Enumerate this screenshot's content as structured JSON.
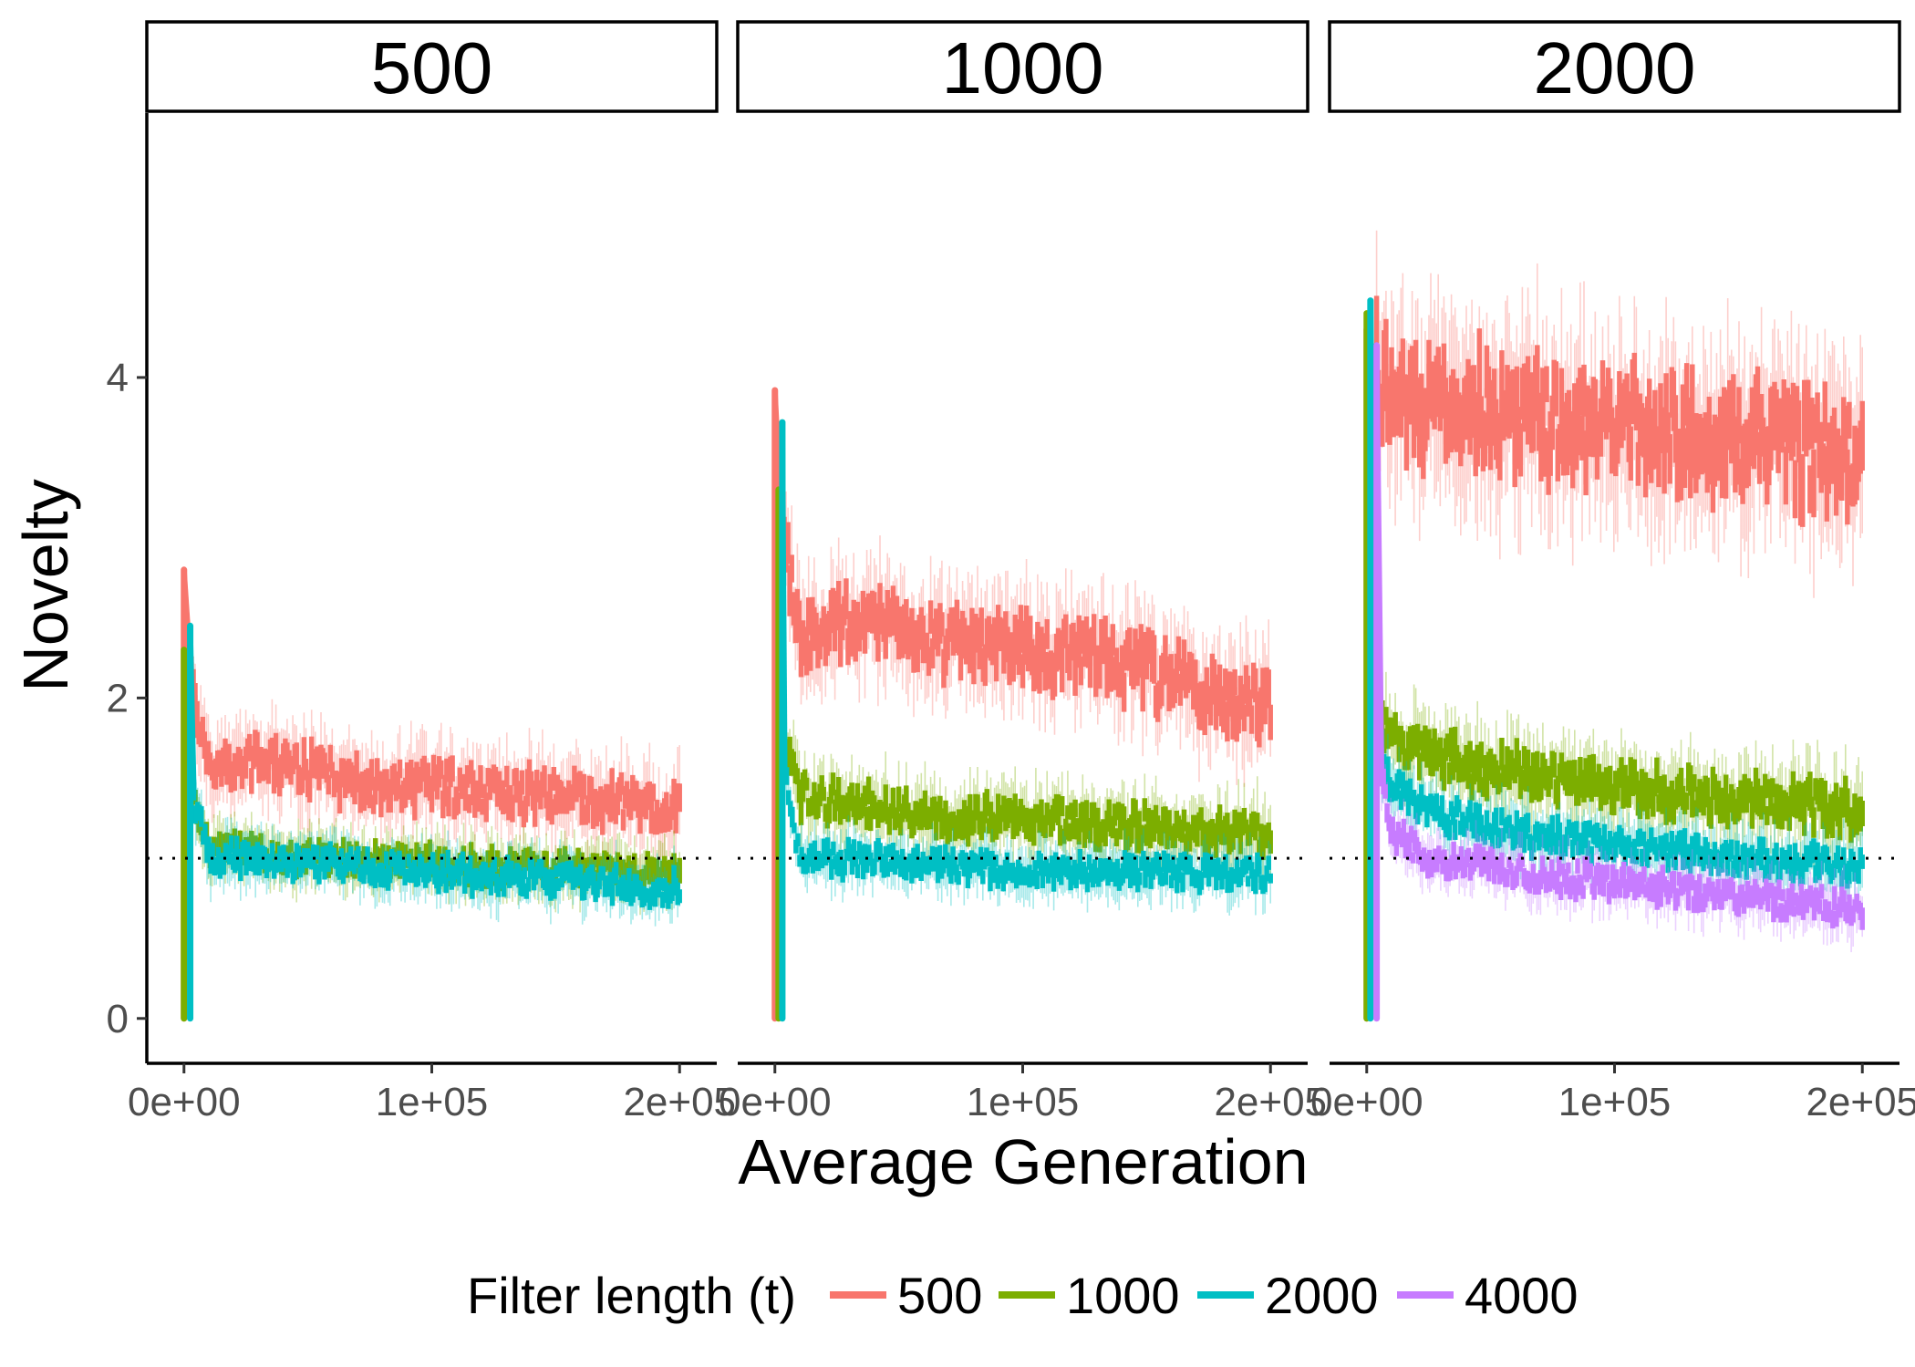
{
  "chart_data": {
    "type": "line",
    "facets": [
      "500",
      "1000",
      "2000"
    ],
    "xlabel": "Average Generation",
    "ylabel": "Novelty",
    "xlim": [
      -15000,
      215000
    ],
    "ylim": [
      -0.28,
      5.65
    ],
    "x_ticks": [
      0,
      100000,
      200000
    ],
    "x_tick_labels": [
      "0e+00",
      "1e+05",
      "2e+05"
    ],
    "y_ticks": [
      0,
      2,
      4
    ],
    "y_tick_labels": [
      "0",
      "2",
      "4"
    ],
    "reference_line": {
      "y": 1,
      "style": "dotted",
      "color": "#000000"
    },
    "grid": false,
    "legend": {
      "title": "Filter length (t)",
      "position": "bottom",
      "entries": [
        {
          "name": "500",
          "color": "#F8766D"
        },
        {
          "name": "1000",
          "color": "#7CAE00"
        },
        {
          "name": "2000",
          "color": "#00BFC4"
        },
        {
          "name": "4000",
          "color": "#C77CFF"
        }
      ]
    },
    "panels": [
      {
        "facet": "500",
        "series": [
          {
            "name": "500",
            "color": "#F8766D",
            "spike": {
              "x": 0,
              "peak": 2.8
            },
            "x": [
              3000,
              10000,
              25000,
              50000,
              75000,
              100000,
              125000,
              150000,
              175000,
              200000
            ],
            "y": [
              2.1,
              1.55,
              1.6,
              1.55,
              1.45,
              1.45,
              1.42,
              1.38,
              1.35,
              1.32
            ],
            "band": 0.18
          },
          {
            "name": "1000",
            "color": "#7CAE00",
            "spike": {
              "x": 0,
              "peak": 2.3
            },
            "x": [
              3000,
              10000,
              25000,
              50000,
              75000,
              100000,
              125000,
              150000,
              175000,
              200000
            ],
            "y": [
              1.4,
              1.05,
              1.05,
              1.0,
              0.98,
              0.97,
              0.95,
              0.93,
              0.92,
              0.9
            ],
            "band": 0.12
          },
          {
            "name": "2000",
            "color": "#00BFC4",
            "spike": {
              "x": 2500,
              "peak": 2.45
            },
            "x": [
              4000,
              10000,
              25000,
              50000,
              75000,
              100000,
              125000,
              150000,
              175000,
              200000
            ],
            "y": [
              1.4,
              1.0,
              1.0,
              0.97,
              0.93,
              0.92,
              0.88,
              0.87,
              0.84,
              0.8
            ],
            "band": 0.12
          }
        ]
      },
      {
        "facet": "1000",
        "series": [
          {
            "name": "500",
            "color": "#F8766D",
            "spike": {
              "x": 0,
              "peak": 3.92
            },
            "x": [
              3000,
              10000,
              25000,
              50000,
              75000,
              100000,
              125000,
              150000,
              175000,
              200000
            ],
            "y": [
              3.0,
              2.4,
              2.45,
              2.45,
              2.35,
              2.3,
              2.25,
              2.15,
              2.05,
              1.95
            ],
            "band": 0.25
          },
          {
            "name": "1000",
            "color": "#7CAE00",
            "spike": {
              "x": 1500,
              "peak": 3.3
            },
            "x": [
              3000,
              10000,
              25000,
              50000,
              75000,
              100000,
              125000,
              150000,
              175000,
              200000
            ],
            "y": [
              1.8,
              1.4,
              1.35,
              1.3,
              1.25,
              1.25,
              1.22,
              1.2,
              1.18,
              1.15
            ],
            "band": 0.15
          },
          {
            "name": "2000",
            "color": "#00BFC4",
            "spike": {
              "x": 3000,
              "peak": 3.72
            },
            "x": [
              4000,
              10000,
              25000,
              50000,
              75000,
              100000,
              125000,
              150000,
              175000,
              200000
            ],
            "y": [
              1.5,
              1.02,
              1.0,
              0.98,
              0.95,
              0.93,
              0.92,
              0.92,
              0.9,
              0.9
            ],
            "band": 0.12
          }
        ]
      },
      {
        "facet": "2000",
        "series": [
          {
            "name": "500",
            "color": "#F8766D",
            "spike": {
              "x": 0,
              "peak": 4.3
            },
            "x": [
              4000,
              10000,
              25000,
              50000,
              75000,
              100000,
              125000,
              150000,
              175000,
              200000
            ],
            "y": [
              4.1,
              3.9,
              3.85,
              3.8,
              3.75,
              3.7,
              3.65,
              3.6,
              3.55,
              3.5
            ],
            "band": 0.4
          },
          {
            "name": "1000",
            "color": "#7CAE00",
            "spike": {
              "x": 0,
              "peak": 4.4
            },
            "x": [
              4000,
              10000,
              25000,
              50000,
              75000,
              100000,
              125000,
              150000,
              175000,
              200000
            ],
            "y": [
              1.95,
              1.75,
              1.65,
              1.55,
              1.5,
              1.45,
              1.4,
              1.38,
              1.35,
              1.3
            ],
            "band": 0.18
          },
          {
            "name": "2000",
            "color": "#00BFC4",
            "spike": {
              "x": 1500,
              "peak": 4.48
            },
            "x": [
              4000,
              10000,
              25000,
              50000,
              75000,
              100000,
              125000,
              150000,
              175000,
              200000
            ],
            "y": [
              1.7,
              1.45,
              1.3,
              1.2,
              1.12,
              1.08,
              1.05,
              1.0,
              0.98,
              0.95
            ],
            "band": 0.13
          },
          {
            "name": "4000",
            "color": "#C77CFF",
            "spike": {
              "x": 4000,
              "peak": 4.2
            },
            "x": [
              6000,
              10000,
              25000,
              50000,
              75000,
              100000,
              125000,
              150000,
              175000,
              200000
            ],
            "y": [
              1.5,
              1.15,
              1.0,
              0.95,
              0.88,
              0.85,
              0.8,
              0.76,
              0.72,
              0.68
            ],
            "band": 0.12
          }
        ]
      }
    ]
  }
}
